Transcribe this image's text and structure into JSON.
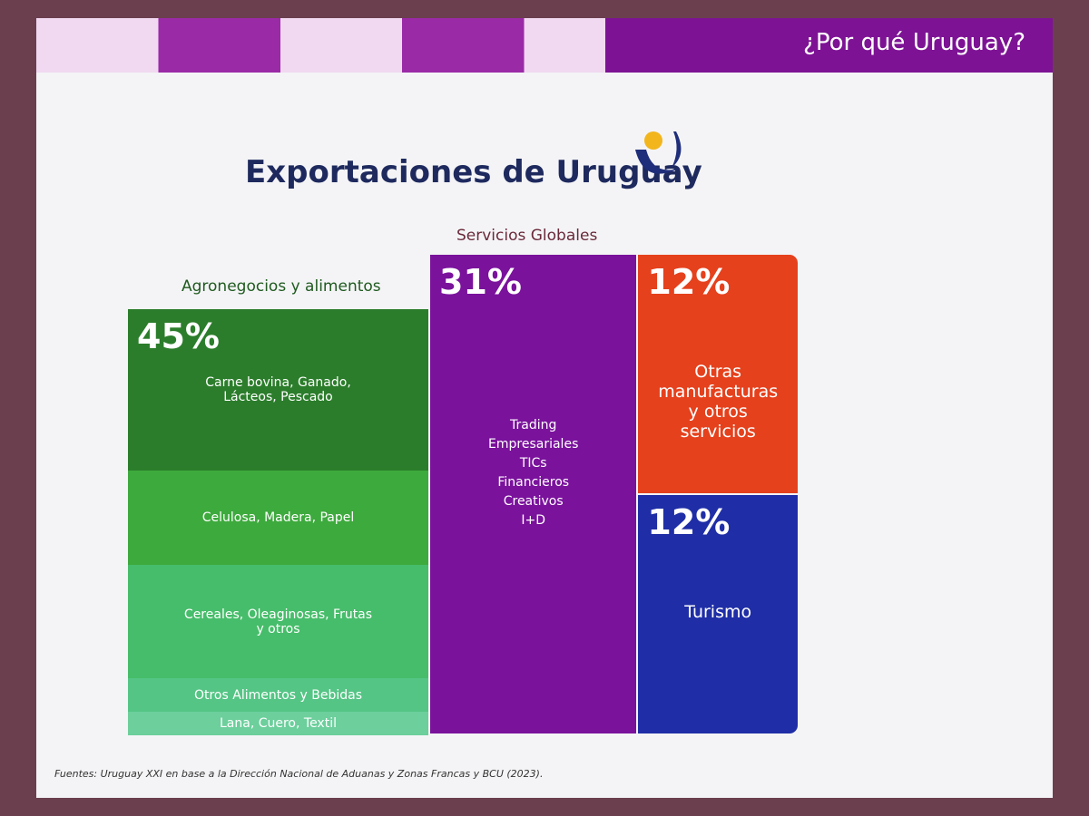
{
  "header": "¿Por qué Uruguay?",
  "chart_data": {
    "type": "treemap",
    "title": "Exportaciones de Uruguay",
    "groups": [
      {
        "name": "Agronegocios y alimentos",
        "value": 45,
        "value_label": "45%",
        "color": "#2f8a2f",
        "children": [
          {
            "name": "Carne bovina, Ganado, Lácteos, Pescado",
            "value": 17,
            "color": "#2b7d2b"
          },
          {
            "name": "Celulosa, Madera, Papel",
            "value": 10,
            "color": "#3daa3d"
          },
          {
            "name": "Cereales, Oleaginosas, Frutas y otros",
            "value": 12,
            "color": "#46bd6a"
          },
          {
            "name": "Otros Alimentos y Bebidas",
            "value": 3.5,
            "color": "#55c585"
          },
          {
            "name": "Lana, Cuero, Textil",
            "value": 2.5,
            "color": "#6ccf9c"
          }
        ]
      },
      {
        "name": "Servicios Globales",
        "value": 31,
        "value_label": "31%",
        "color": "#7a129c",
        "items": [
          "Trading",
          "Empresariales",
          "TICs",
          "Financieros",
          "Creativos",
          "I+D"
        ]
      },
      {
        "name": "Otras manufacturas y otros servicios",
        "value": 12,
        "value_label": "12%",
        "color": "#e5411d"
      },
      {
        "name": "Turismo",
        "value": 12,
        "value_label": "12%",
        "color": "#1f2ea6"
      }
    ],
    "source": "Fuentes: Uruguay XXI en base a la Dirección Nacional de Aduanas y Zonas Francas y BCU (2023)."
  }
}
